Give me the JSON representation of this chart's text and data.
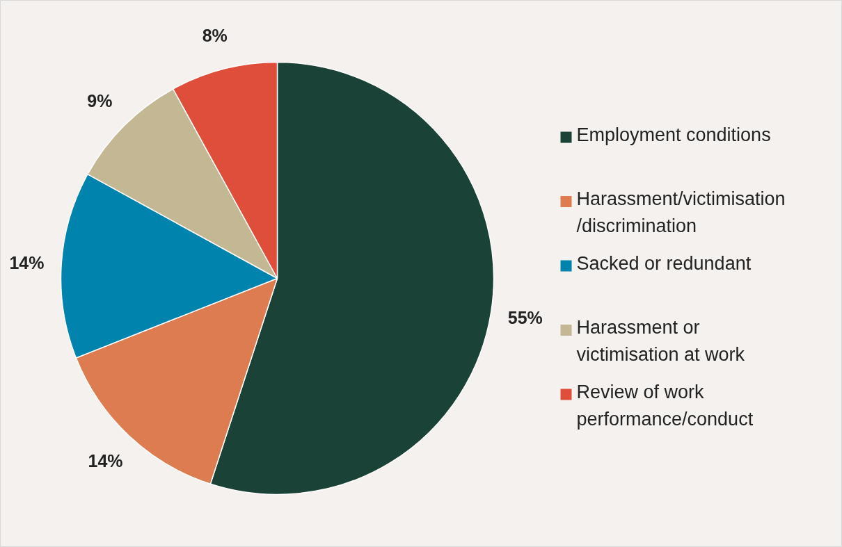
{
  "chart_data": {
    "type": "pie",
    "categories": [
      "Employment conditions",
      "Harassment/victimisation\n/discrimination",
      "Sacked or redundant",
      "Harassment or\nvictimisation at work",
      "Review of work\nperformance/conduct"
    ],
    "values": [
      55,
      14,
      14,
      9,
      8
    ],
    "colors": [
      "#1b4237",
      "#dd7c50",
      "#0083ad",
      "#c4b793",
      "#df4e3b"
    ],
    "value_labels": [
      "55%",
      "14%",
      "14%",
      "9%",
      "8%"
    ],
    "legend": "right"
  }
}
